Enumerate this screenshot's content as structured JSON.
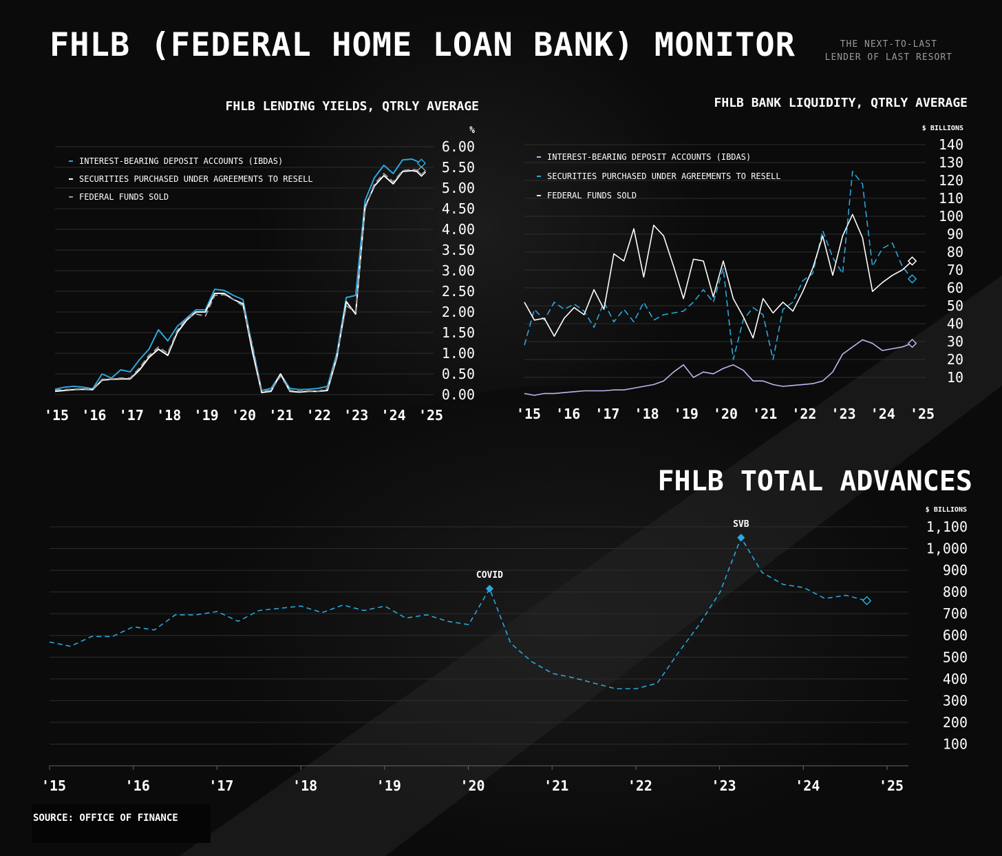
{
  "header": {
    "title": "FHLB (FEDERAL HOME LOAN BANK) MONITOR",
    "tagline_line1": "THE NEXT-TO-LAST",
    "tagline_line2": "LENDER OF LAST RESORT"
  },
  "source": "SOURCE: OFFICE OF FINANCE",
  "colors": {
    "blue": "#2aa8e0",
    "white": "#ffffff",
    "lavender": "#b9b9f0",
    "grey": "#9a9a9a"
  },
  "chart_data": [
    {
      "id": "yields",
      "type": "line",
      "title": "FHLB LENDING YIELDS, QTRLY AVERAGE",
      "unit": "%",
      "x_tick_labels": [
        "'15",
        "'16",
        "'17",
        "'18",
        "'19",
        "'20",
        "'21",
        "'22",
        "'23",
        "'24",
        "'25"
      ],
      "xlim": [
        2015,
        2025
      ],
      "ylim": [
        0,
        6
      ],
      "y_ticks": [
        0,
        0.5,
        1,
        1.5,
        2,
        2.5,
        3,
        3.5,
        4,
        4.5,
        5,
        5.5,
        6
      ],
      "y_tick_labels": [
        "0.00",
        "0.50",
        "1.00",
        "1.50",
        "2.00",
        "2.50",
        "3.00",
        "3.50",
        "4.00",
        "4.50",
        "5.00",
        "5.50",
        "6.00"
      ],
      "legend_position": "top-left",
      "x": [
        2015.0,
        2015.25,
        2015.5,
        2015.75,
        2016.0,
        2016.25,
        2016.5,
        2016.75,
        2017.0,
        2017.25,
        2017.5,
        2017.75,
        2018.0,
        2018.25,
        2018.5,
        2018.75,
        2019.0,
        2019.25,
        2019.5,
        2019.75,
        2020.0,
        2020.25,
        2020.5,
        2020.75,
        2021.0,
        2021.25,
        2021.5,
        2021.75,
        2022.0,
        2022.25,
        2022.5,
        2022.75,
        2023.0,
        2023.25,
        2023.5,
        2023.75,
        2024.0,
        2024.25,
        2024.5,
        2024.75
      ],
      "series": [
        {
          "name": "INTEREST-BEARING DEPOSIT ACCOUNTS (IBDAS)",
          "color": "#2aa8e0",
          "style": "solid",
          "values": [
            0.13,
            0.18,
            0.2,
            0.18,
            0.14,
            0.5,
            0.4,
            0.6,
            0.55,
            0.85,
            1.1,
            1.57,
            1.3,
            1.65,
            1.85,
            2.05,
            2.05,
            2.55,
            2.52,
            2.4,
            2.3,
            1.15,
            0.1,
            0.15,
            0.5,
            0.15,
            0.12,
            0.13,
            0.15,
            0.2,
            1.0,
            2.35,
            2.4,
            4.7,
            5.25,
            5.55,
            5.35,
            5.68,
            5.7,
            5.6
          ]
        },
        {
          "name": "SECURITIES PURCHASED UNDER AGREEMENTS TO RESELL",
          "color": "#ffffff",
          "style": "solid",
          "values": [
            0.08,
            0.1,
            0.12,
            0.13,
            0.12,
            0.35,
            0.37,
            0.38,
            0.38,
            0.6,
            0.9,
            1.1,
            0.95,
            1.5,
            1.8,
            2.0,
            2.0,
            2.45,
            2.45,
            2.3,
            2.2,
            1.05,
            0.05,
            0.08,
            0.5,
            0.08,
            0.06,
            0.08,
            0.08,
            0.1,
            0.9,
            2.25,
            1.95,
            4.55,
            5.05,
            5.3,
            5.1,
            5.4,
            5.42,
            5.38
          ]
        },
        {
          "name": "FEDERAL FUNDS SOLD",
          "color": "#9a9a9a",
          "style": "dashed",
          "values": [
            0.11,
            0.12,
            0.13,
            0.14,
            0.13,
            0.37,
            0.38,
            0.4,
            0.4,
            0.65,
            0.95,
            1.15,
            1.0,
            1.55,
            1.85,
            1.95,
            1.9,
            2.4,
            2.42,
            2.3,
            2.15,
            1.2,
            0.08,
            0.1,
            0.45,
            0.1,
            0.08,
            0.09,
            0.08,
            0.15,
            0.95,
            2.15,
            2.0,
            4.5,
            5.1,
            5.35,
            5.15,
            5.42,
            5.45,
            5.42
          ]
        }
      ]
    },
    {
      "id": "liquidity",
      "type": "line",
      "title": "FHLB BANK LIQUIDITY, QTRLY AVERAGE",
      "unit": "$ BILLIONS",
      "x_tick_labels": [
        "'15",
        "'16",
        "'17",
        "'18",
        "'19",
        "'20",
        "'21",
        "'22",
        "'23",
        "'24",
        "'25"
      ],
      "xlim": [
        2015,
        2025
      ],
      "ylim": [
        0,
        140
      ],
      "y_ticks": [
        10,
        20,
        30,
        40,
        50,
        60,
        70,
        80,
        90,
        100,
        110,
        120,
        130,
        140
      ],
      "y_tick_labels": [
        "10",
        "20",
        "30",
        "40",
        "50",
        "60",
        "70",
        "80",
        "90",
        "100",
        "110",
        "120",
        "130",
        "140"
      ],
      "legend_position": "top-left",
      "x": [
        2015.0,
        2015.25,
        2015.5,
        2015.75,
        2016.0,
        2016.25,
        2016.5,
        2016.75,
        2017.0,
        2017.25,
        2017.5,
        2017.75,
        2018.0,
        2018.25,
        2018.5,
        2018.75,
        2019.0,
        2019.25,
        2019.5,
        2019.75,
        2020.0,
        2020.25,
        2020.5,
        2020.75,
        2021.0,
        2021.25,
        2021.5,
        2021.75,
        2022.0,
        2022.25,
        2022.5,
        2022.75,
        2023.0,
        2023.25,
        2023.5,
        2023.75,
        2024.0,
        2024.25,
        2024.5,
        2024.75
      ],
      "series": [
        {
          "name": "INTEREST-BEARING DEPOSIT ACCOUNTS (IBDAS)",
          "color": "#b9b9f0",
          "style": "solid",
          "values": [
            1,
            0,
            1,
            1,
            1.5,
            2,
            2.5,
            2.5,
            2.5,
            3,
            3,
            4,
            5,
            6,
            8,
            13,
            17,
            10,
            13,
            12,
            15,
            17,
            14,
            8,
            8,
            6,
            5,
            5.5,
            6,
            6.5,
            8,
            13,
            23,
            27,
            31,
            29,
            25,
            26,
            27,
            29
          ]
        },
        {
          "name": "SECURITIES PURCHASED UNDER AGREEMENTS TO RESELL",
          "color": "#2aa8e0",
          "style": "dashed",
          "values": [
            28,
            48,
            42,
            52,
            48,
            51,
            47,
            38,
            52,
            41,
            48,
            41,
            52,
            42,
            45,
            46,
            47,
            52,
            59,
            52,
            71,
            20,
            42,
            49,
            45,
            20,
            48,
            52,
            64,
            68,
            92,
            77,
            68,
            125,
            118,
            72,
            82,
            85,
            72,
            65
          ]
        },
        {
          "name": "FEDERAL FUNDS SOLD",
          "color": "#ffffff",
          "style": "solid",
          "values": [
            52,
            42,
            43,
            33,
            43,
            49,
            45,
            59,
            48,
            79,
            75,
            93,
            66,
            95,
            89,
            72,
            54,
            76,
            75,
            55,
            75,
            54,
            44,
            32,
            54,
            46,
            52,
            47,
            58,
            71,
            89,
            67,
            89,
            101,
            88,
            58,
            63,
            67,
            70,
            75
          ]
        }
      ]
    },
    {
      "id": "advances",
      "type": "line",
      "title": "FHLB TOTAL ADVANCES",
      "unit": "$ BILLIONS",
      "x_tick_labels": [
        "'15",
        "'16",
        "'17",
        "'18",
        "'19",
        "'20",
        "'21",
        "'22",
        "'23",
        "'24",
        "'25"
      ],
      "xlim": [
        2015,
        2025
      ],
      "ylim": [
        0,
        1100
      ],
      "y_ticks": [
        100,
        200,
        300,
        400,
        500,
        600,
        700,
        800,
        900,
        1000,
        1100
      ],
      "y_tick_labels": [
        "100",
        "200",
        "300",
        "400",
        "500",
        "600",
        "700",
        "800",
        "900",
        "1,000",
        "1,100"
      ],
      "annotations": [
        {
          "label": "COVID",
          "x": 2020.25,
          "y": 815
        },
        {
          "label": "SVB",
          "x": 2023.25,
          "y": 1050
        }
      ],
      "x": [
        2015.0,
        2015.25,
        2015.5,
        2015.75,
        2016.0,
        2016.25,
        2016.5,
        2016.75,
        2017.0,
        2017.25,
        2017.5,
        2017.75,
        2018.0,
        2018.25,
        2018.5,
        2018.75,
        2019.0,
        2019.25,
        2019.5,
        2019.75,
        2020.0,
        2020.25,
        2020.5,
        2020.75,
        2021.0,
        2021.25,
        2021.5,
        2021.75,
        2022.0,
        2022.25,
        2022.5,
        2022.75,
        2023.0,
        2023.25,
        2023.5,
        2023.75,
        2024.0,
        2024.25,
        2024.5,
        2024.75
      ],
      "series": [
        {
          "name": "",
          "color": "#2aa8e0",
          "style": "dashed",
          "values": [
            570,
            550,
            595,
            595,
            640,
            625,
            695,
            695,
            710,
            665,
            715,
            725,
            735,
            705,
            740,
            715,
            735,
            680,
            695,
            665,
            650,
            815,
            565,
            480,
            425,
            405,
            380,
            355,
            355,
            380,
            520,
            650,
            800,
            1050,
            890,
            835,
            820,
            770,
            785,
            760
          ]
        }
      ]
    }
  ]
}
